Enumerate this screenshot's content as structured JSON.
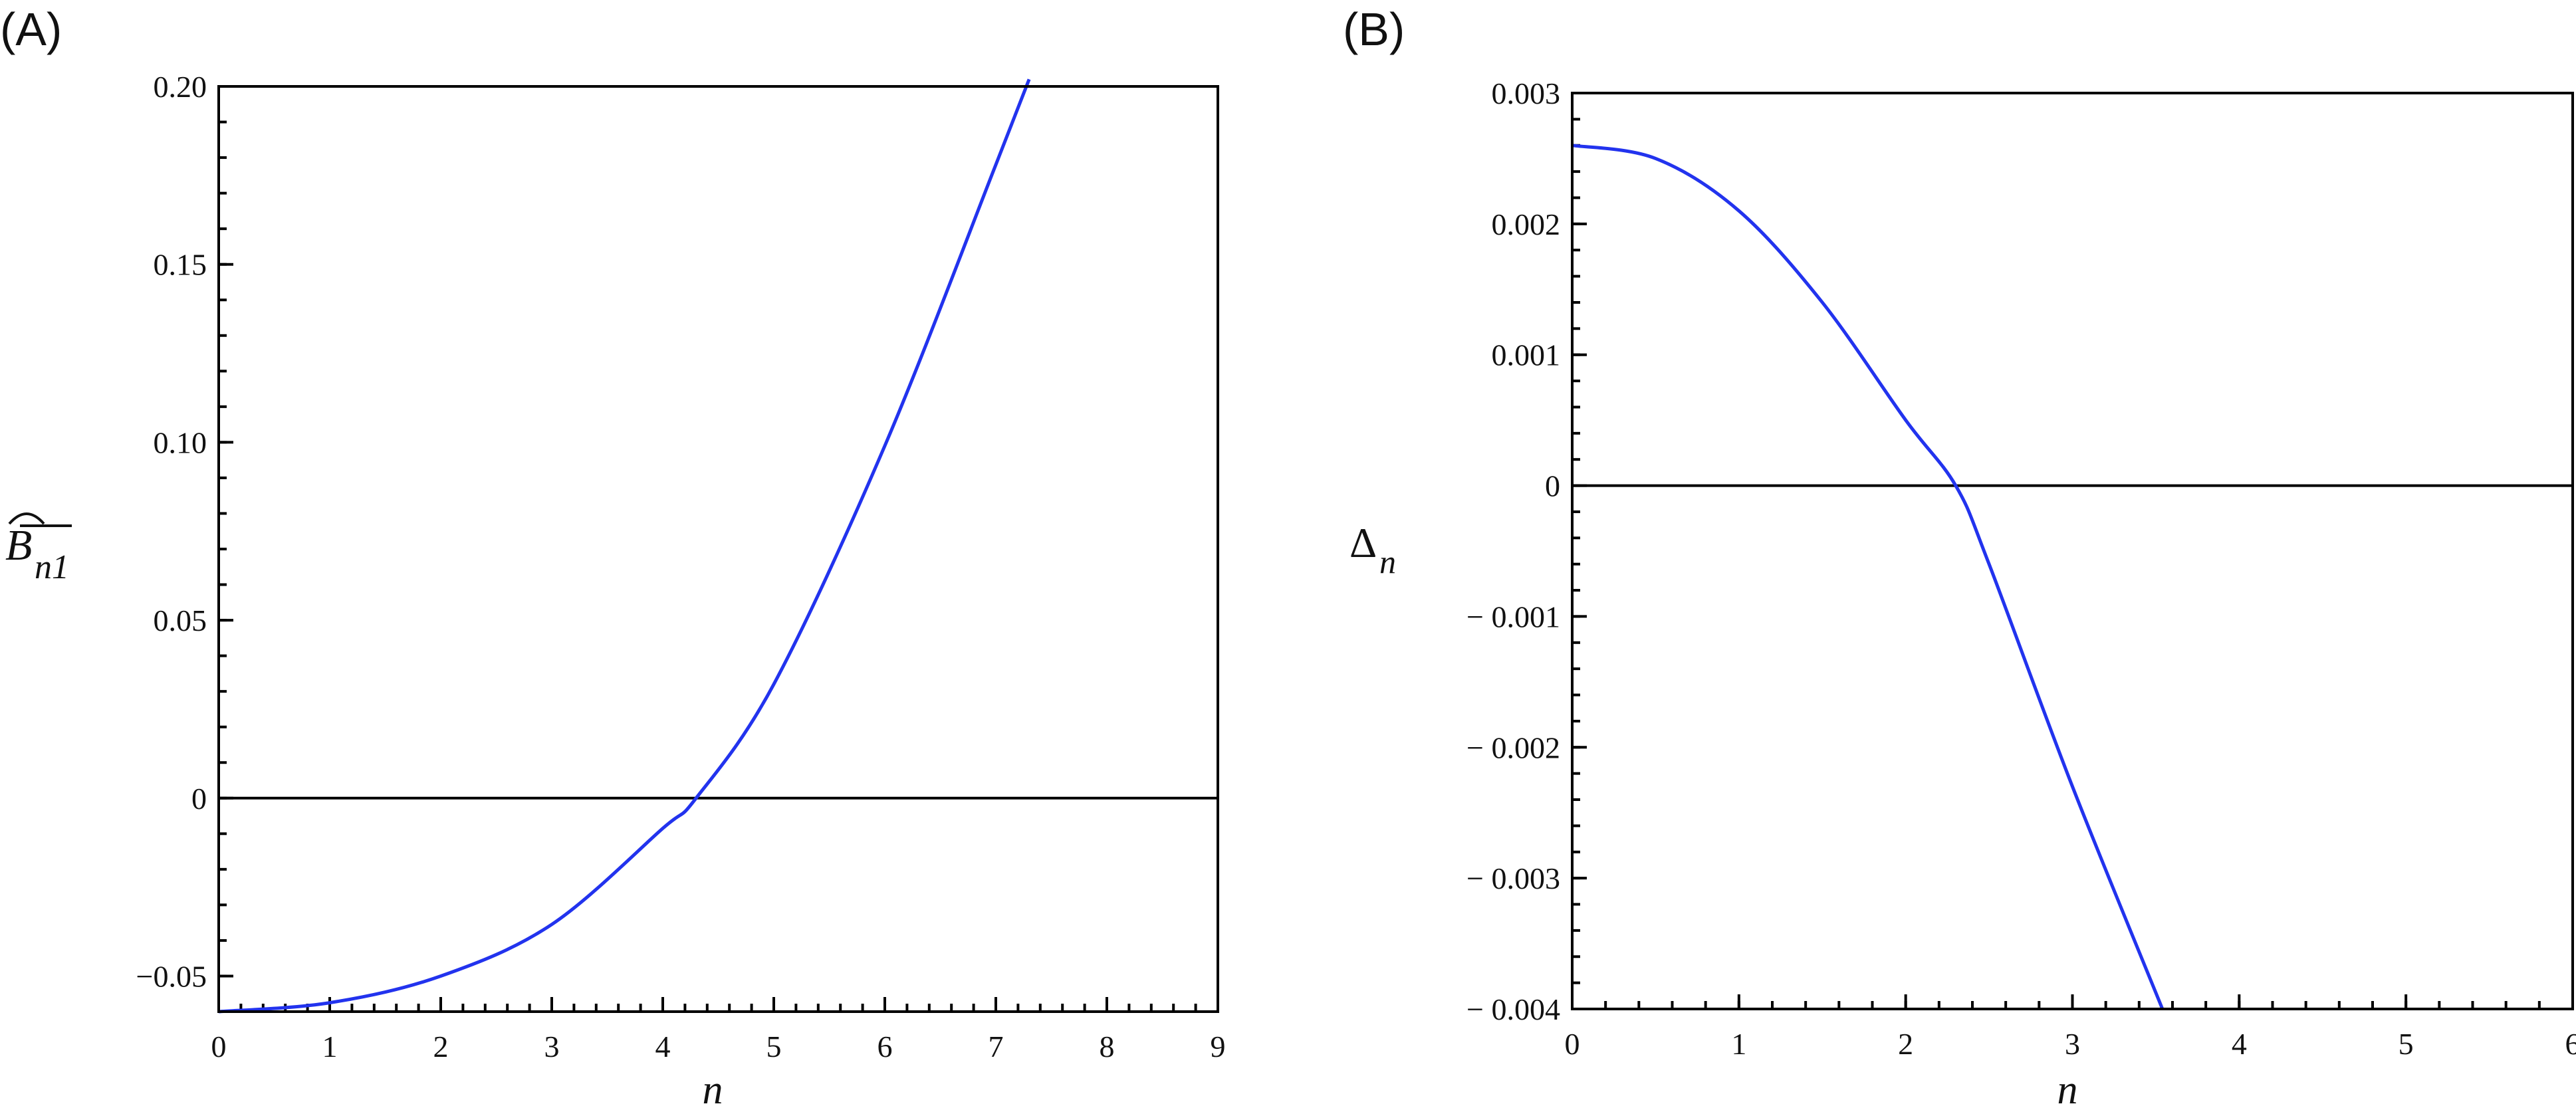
{
  "panels": [
    {
      "panel_label": "(A)",
      "xlabel": "n",
      "ylabel_main": "B",
      "ylabel_sub": "n1",
      "xticks": [
        "0",
        "1",
        "2",
        "3",
        "4",
        "5",
        "6",
        "7",
        "8",
        "9"
      ],
      "yticks": [
        "−0.05",
        "0",
        "0.05",
        "0.10",
        "0.15",
        "0.20"
      ]
    },
    {
      "panel_label": "(B)",
      "xlabel": "n",
      "ylabel_main": "Δ",
      "ylabel_sub": "n",
      "xticks": [
        "0",
        "1",
        "2",
        "3",
        "4",
        "5",
        "6"
      ],
      "yticks": [
        "− 0.004",
        "− 0.003",
        "− 0.002",
        "− 0.001",
        "0",
        "0.001",
        "0.002",
        "0.003"
      ]
    }
  ],
  "chart_data": [
    {
      "type": "line",
      "title": "",
      "xlabel": "n",
      "ylabel": "B̂_n1",
      "xlim": [
        0,
        9
      ],
      "ylim": [
        -0.06,
        0.2
      ],
      "x_ticks": [
        0,
        1,
        2,
        3,
        4,
        5,
        6,
        7,
        8,
        9
      ],
      "y_ticks": [
        -0.05,
        0,
        0.05,
        0.1,
        0.15,
        0.2
      ],
      "grid": false,
      "horizontal_reference_line": 0,
      "series": [
        {
          "color": "#2233ee",
          "x": [
            0,
            1,
            2,
            3,
            4,
            4.3,
            5,
            6,
            7,
            7.3
          ],
          "y": [
            -0.06,
            -0.0575,
            -0.05,
            -0.0355,
            -0.0085,
            0.0,
            0.032,
            0.099,
            0.178,
            0.202
          ]
        }
      ]
    },
    {
      "type": "line",
      "title": "",
      "xlabel": "n",
      "ylabel": "Δ_n",
      "xlim": [
        0,
        6
      ],
      "ylim": [
        -0.004,
        0.003
      ],
      "x_ticks": [
        0,
        1,
        2,
        3,
        4,
        5,
        6
      ],
      "y_ticks": [
        -0.004,
        -0.003,
        -0.002,
        -0.001,
        0,
        0.001,
        0.002,
        0.003
      ],
      "grid": false,
      "horizontal_reference_line": 0,
      "series": [
        {
          "color": "#2233ee",
          "x": [
            0,
            0.5,
            1,
            1.5,
            2,
            2.3,
            2.5,
            3,
            3.54
          ],
          "y": [
            0.0026,
            0.0025,
            0.0021,
            0.0014,
            0.0005,
            0.0,
            -0.0006,
            -0.0023,
            -0.004
          ]
        }
      ]
    }
  ]
}
